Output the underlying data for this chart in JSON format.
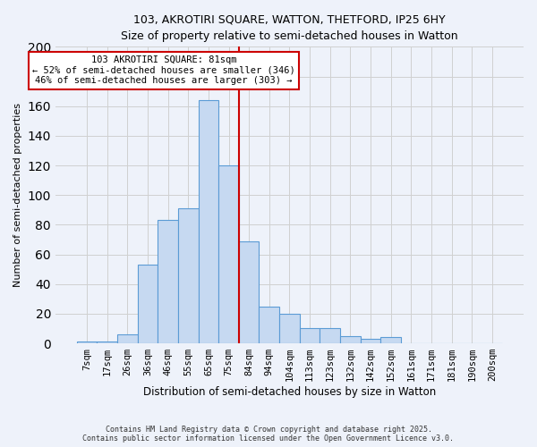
{
  "title_line1": "103, AKROTIRI SQUARE, WATTON, THETFORD, IP25 6HY",
  "title_line2": "Size of property relative to semi-detached houses in Watton",
  "xlabel": "Distribution of semi-detached houses by size in Watton",
  "ylabel": "Number of semi-detached properties",
  "footer_line1": "Contains HM Land Registry data © Crown copyright and database right 2025.",
  "footer_line2": "Contains public sector information licensed under the Open Government Licence v3.0.",
  "bar_labels": [
    "7sqm",
    "17sqm",
    "26sqm",
    "36sqm",
    "46sqm",
    "55sqm",
    "65sqm",
    "75sqm",
    "84sqm",
    "94sqm",
    "104sqm",
    "113sqm",
    "123sqm",
    "132sqm",
    "142sqm",
    "152sqm",
    "161sqm",
    "171sqm",
    "181sqm",
    "190sqm",
    "200sqm"
  ],
  "bar_values": [
    1,
    1,
    6,
    53,
    83,
    91,
    164,
    120,
    69,
    25,
    20,
    10,
    10,
    5,
    3,
    4,
    0,
    0,
    0,
    0,
    0
  ],
  "bar_color": "#c6d9f1",
  "bar_edge_color": "#5b9bd5",
  "grid_color": "#d0d0d0",
  "background_color": "#eef2fa",
  "vline_color": "#cc0000",
  "annotation_title": "103 AKROTIRI SQUARE: 81sqm",
  "annotation_line2": "← 52% of semi-detached houses are smaller (346)",
  "annotation_line3": "46% of semi-detached houses are larger (303) →",
  "annotation_box_color": "#ffffff",
  "annotation_box_edge": "#cc0000",
  "ylim": [
    0,
    200
  ],
  "yticks": [
    0,
    20,
    40,
    60,
    80,
    100,
    120,
    140,
    160,
    180,
    200
  ]
}
